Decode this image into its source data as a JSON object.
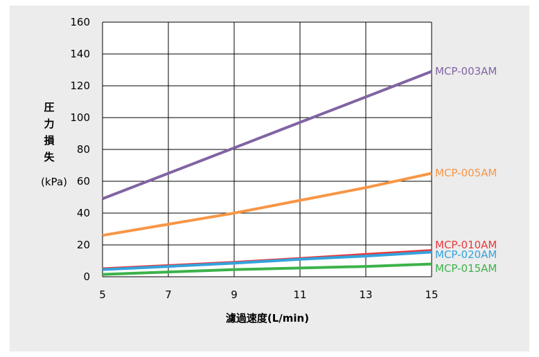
{
  "chart_data": {
    "type": "line",
    "ylabel_chars": [
      "圧",
      "力",
      "損",
      "失"
    ],
    "ylabel_unit": "(kPa)",
    "xlabel": "濾過速度(L/min)",
    "xlim": [
      5,
      15
    ],
    "ylim": [
      0,
      160
    ],
    "xticks": [
      5,
      7,
      9,
      11,
      13,
      15
    ],
    "yticks": [
      0,
      20,
      40,
      60,
      80,
      100,
      120,
      140,
      160
    ],
    "grid": true,
    "series": [
      {
        "name": "MCP-003AM",
        "color": "#8064a2",
        "x": [
          5,
          7,
          9,
          11,
          13,
          15
        ],
        "y": [
          49,
          65,
          81,
          97,
          113,
          129
        ]
      },
      {
        "name": "MCP-005AM",
        "color": "#f79646",
        "x": [
          5,
          7,
          9,
          11,
          13,
          15
        ],
        "y": [
          26,
          33,
          40,
          48,
          56,
          65
        ]
      },
      {
        "name": "MCP-010AM",
        "color": "#e8383d",
        "x": [
          5,
          7,
          9,
          11,
          13,
          15
        ],
        "y": [
          5,
          7,
          9,
          11.5,
          14,
          16.5
        ]
      },
      {
        "name": "MCP-020AM",
        "color": "#33a3dc",
        "x": [
          5,
          7,
          9,
          11,
          13,
          15
        ],
        "y": [
          4.5,
          6.5,
          8.5,
          11,
          13,
          15.5
        ]
      },
      {
        "name": "MCP-015AM",
        "color": "#3cb24a",
        "x": [
          5,
          7,
          9,
          11,
          13,
          15
        ],
        "y": [
          1.5,
          3,
          4.5,
          5.5,
          6.5,
          8
        ]
      }
    ]
  }
}
